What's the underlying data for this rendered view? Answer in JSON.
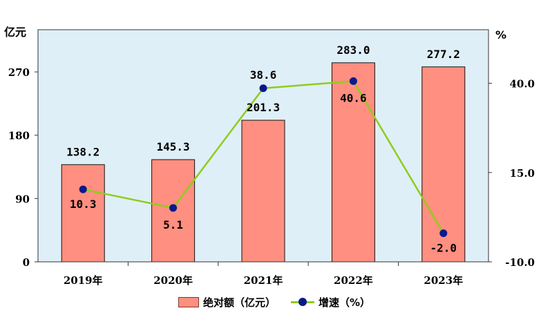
{
  "chart_data": {
    "type": "bar+line",
    "categories": [
      "2019年",
      "2020年",
      "2021年",
      "2022年",
      "2023年"
    ],
    "series": [
      {
        "name": "绝对额（亿元）",
        "type": "bar",
        "axis": "left",
        "values": [
          138.2,
          145.3,
          201.3,
          283.0,
          277.2
        ],
        "labels": [
          "138.2",
          "145.3",
          "201.3",
          "283.0",
          "277.2"
        ],
        "color": "#ff8f80"
      },
      {
        "name": "增速（%）",
        "type": "line",
        "axis": "right",
        "values": [
          10.3,
          5.1,
          38.6,
          40.6,
          -2.0
        ],
        "labels": [
          "10.3",
          "5.1",
          "38.6",
          "40.6",
          "-2.0"
        ],
        "color": "#8fcc1c",
        "marker_color": "#0a1a8c"
      }
    ],
    "left_axis": {
      "unit": "亿元",
      "ylim": [
        0,
        330
      ],
      "ticks": [
        0,
        90,
        180,
        270
      ],
      "tick_labels": [
        "0",
        "90",
        "180",
        "270"
      ]
    },
    "right_axis": {
      "unit": "%",
      "ylim": [
        -10,
        55
      ],
      "ticks": [
        -10,
        15,
        40
      ],
      "tick_labels": [
        "-10.0",
        "15.0",
        "40.0"
      ]
    },
    "grid": false,
    "legend_position": "bottom",
    "plot_background": "#dfeff7"
  }
}
